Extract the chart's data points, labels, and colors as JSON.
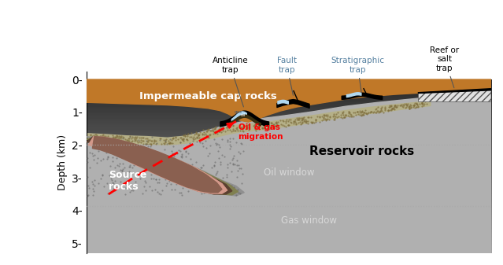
{
  "ylabel": "Depth (km)",
  "ylim": [
    5.3,
    -0.25
  ],
  "xlim": [
    0,
    10
  ],
  "yticks": [
    0,
    1,
    2,
    3,
    4,
    5
  ],
  "labels": {
    "cap_rocks": "Impermeable cap rocks",
    "reservoir": "Reservoir rocks",
    "source": "Source\nrocks",
    "oil_gas": "Oil & gas\nmigration",
    "oil_window": "Oil window",
    "gas_window": "Gas window",
    "anticline": "Anticline\ntrap",
    "fault": "Fault\ntrap",
    "stratigraphic": "Stratigraphic\ntrap",
    "reef": "Reef or\nsalt\ntrap"
  },
  "colors": {
    "cap_brown": "#c07828",
    "reservoir_gray_light": "#b8b8b8",
    "reservoir_gray_dark": "#404040",
    "source_olive": "#909060",
    "source_pink": "#d4998a",
    "source_dark_ring": "#7a5540",
    "source_gray_outer": "#909090",
    "bg_dark": "#1a1a1a",
    "bg_mid": "#606060",
    "bg_upper": "#909090",
    "dotted_line": "#aaaaaa",
    "sandy_stipple": "#b0aa80",
    "sandy_stipple_dots": "#807850"
  }
}
